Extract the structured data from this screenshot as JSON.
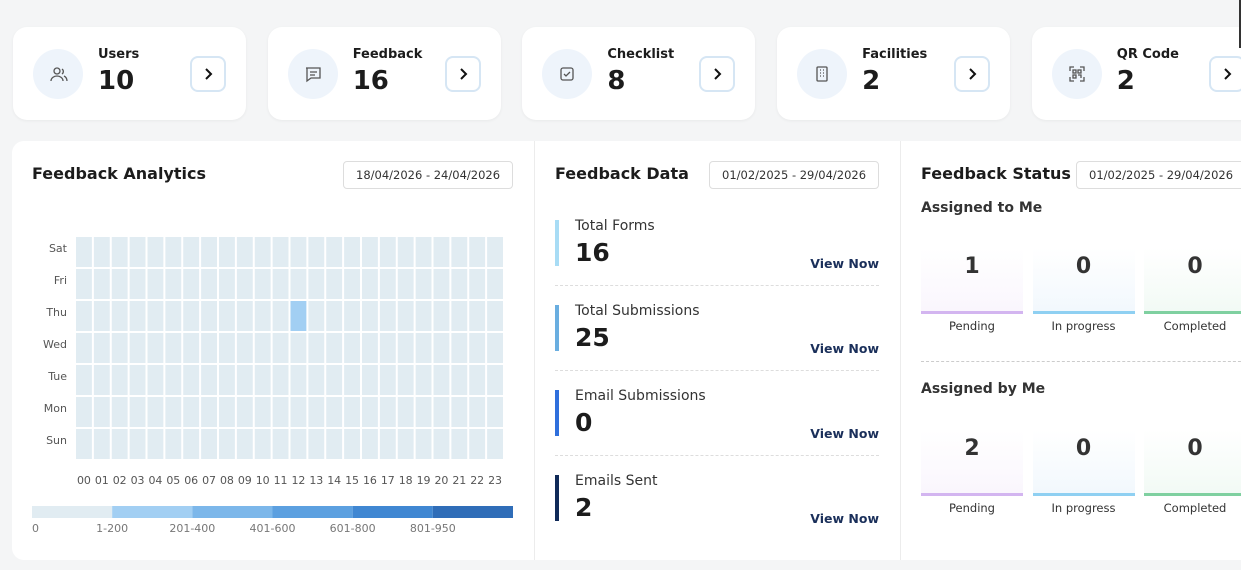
{
  "cards": [
    {
      "label": "Users",
      "value": 10
    },
    {
      "label": "Feedback",
      "value": 16
    },
    {
      "label": "Checklist",
      "value": 8
    },
    {
      "label": "Facilities",
      "value": 2
    },
    {
      "label": "QR Code",
      "value": 2
    }
  ],
  "analytics": {
    "title": "Feedback Analytics",
    "date_range": "18/04/2026 - 24/04/2026",
    "heatmap": {
      "days": [
        "Sat",
        "Fri",
        "Thu",
        "Wed",
        "Tue",
        "Mon",
        "Sun"
      ],
      "hours": [
        "00",
        "01",
        "02",
        "03",
        "04",
        "05",
        "06",
        "07",
        "08",
        "09",
        "10",
        "11",
        "12",
        "13",
        "14",
        "15",
        "16",
        "17",
        "18",
        "19",
        "20",
        "21",
        "22",
        "23"
      ],
      "values": [
        [
          0,
          0,
          0,
          0,
          0,
          0,
          0,
          0,
          0,
          0,
          0,
          0,
          0,
          0,
          0,
          0,
          0,
          0,
          0,
          0,
          0,
          0,
          0,
          0
        ],
        [
          0,
          0,
          0,
          0,
          0,
          0,
          0,
          0,
          0,
          0,
          0,
          0,
          0,
          0,
          0,
          0,
          0,
          0,
          0,
          0,
          0,
          0,
          0,
          0
        ],
        [
          0,
          0,
          0,
          0,
          0,
          0,
          0,
          0,
          0,
          0,
          0,
          0,
          1,
          0,
          0,
          0,
          0,
          0,
          0,
          0,
          0,
          0,
          0,
          0
        ],
        [
          0,
          0,
          0,
          0,
          0,
          0,
          0,
          0,
          0,
          0,
          0,
          0,
          0,
          0,
          0,
          0,
          0,
          0,
          0,
          0,
          0,
          0,
          0,
          0
        ],
        [
          0,
          0,
          0,
          0,
          0,
          0,
          0,
          0,
          0,
          0,
          0,
          0,
          0,
          0,
          0,
          0,
          0,
          0,
          0,
          0,
          0,
          0,
          0,
          0
        ],
        [
          0,
          0,
          0,
          0,
          0,
          0,
          0,
          0,
          0,
          0,
          0,
          0,
          0,
          0,
          0,
          0,
          0,
          0,
          0,
          0,
          0,
          0,
          0,
          0
        ],
        [
          0,
          0,
          0,
          0,
          0,
          0,
          0,
          0,
          0,
          0,
          0,
          0,
          0,
          0,
          0,
          0,
          0,
          0,
          0,
          0,
          0,
          0,
          0,
          0
        ]
      ]
    },
    "legend": [
      {
        "label": "0",
        "min": 0,
        "max": 0,
        "color": "#e1ecf2"
      },
      {
        "label": "1-200",
        "min": 1,
        "max": 200,
        "color": "#a2cff3"
      },
      {
        "label": "201-400",
        "min": 201,
        "max": 400,
        "color": "#7cb7ea"
      },
      {
        "label": "401-600",
        "min": 401,
        "max": 600,
        "color": "#5ca0e0"
      },
      {
        "label": "601-800",
        "min": 601,
        "max": 800,
        "color": "#4087d2"
      },
      {
        "label": "801-950",
        "min": 801,
        "max": 950,
        "color": "#2f6db8"
      }
    ]
  },
  "data_panel": {
    "title": "Feedback Data",
    "date_range": "01/02/2025 - 29/04/2026",
    "items": [
      {
        "label": "Total Forms",
        "value": 16,
        "link": "View Now",
        "color": "#a8dcf5"
      },
      {
        "label": "Total Submissions",
        "value": 25,
        "link": "View Now",
        "color": "#6aaee0"
      },
      {
        "label": "Email Submissions",
        "value": 0,
        "link": "View Now",
        "color": "#2f6fdc"
      },
      {
        "label": "Emails Sent",
        "value": 2,
        "link": "View Now",
        "color": "#102a58"
      }
    ]
  },
  "status": {
    "title": "Feedback Status",
    "date_range": "01/02/2025 - 29/04/2026",
    "groups": [
      {
        "title": "Assigned to Me",
        "items": [
          {
            "label": "Pending",
            "value": 1,
            "color": "#d3b5f0"
          },
          {
            "label": "In progress",
            "value": 0,
            "color": "#8fd0f2"
          },
          {
            "label": "Completed",
            "value": 0,
            "color": "#7fd0a0"
          }
        ]
      },
      {
        "title": "Assigned by Me",
        "items": [
          {
            "label": "Pending",
            "value": 2,
            "color": "#d3b5f0"
          },
          {
            "label": "In progress",
            "value": 0,
            "color": "#8fd0f2"
          },
          {
            "label": "Completed",
            "value": 0,
            "color": "#7fd0a0"
          }
        ]
      }
    ]
  }
}
